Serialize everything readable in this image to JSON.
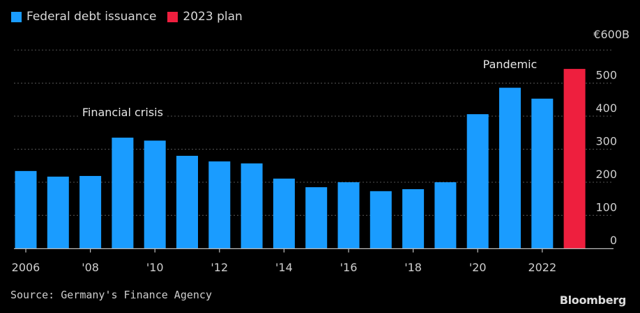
{
  "legend": [
    {
      "label": "Federal debt issuance",
      "color": "#1a9cff"
    },
    {
      "label": "2023 plan",
      "color": "#ee1f3e"
    }
  ],
  "unit_label": "€600B",
  "source": "Source: Germany's Finance Agency",
  "brand": "Bloomberg",
  "chart_data": {
    "type": "bar",
    "title": "",
    "xlabel": "",
    "ylabel": "€ billions",
    "ylim": [
      0,
      600
    ],
    "grid": true,
    "y_axis_side": "right",
    "legend_position": "top-left",
    "yticks": [
      0,
      100,
      200,
      300,
      400,
      500,
      600
    ],
    "ytick_labels": [
      "0",
      "100",
      "200",
      "300",
      "400",
      "500",
      "€600B"
    ],
    "categories": [
      "2006",
      "2007",
      "2008",
      "2009",
      "2010",
      "2011",
      "2012",
      "2013",
      "2014",
      "2015",
      "2016",
      "2017",
      "2018",
      "2019",
      "2020",
      "2021",
      "2022",
      "2023"
    ],
    "xtick_labels": [
      {
        "category": "2006",
        "label": "2006"
      },
      {
        "category": "2008",
        "label": "'08"
      },
      {
        "category": "2010",
        "label": "'10"
      },
      {
        "category": "2012",
        "label": "'12"
      },
      {
        "category": "2014",
        "label": "'14"
      },
      {
        "category": "2016",
        "label": "'16"
      },
      {
        "category": "2018",
        "label": "'18"
      },
      {
        "category": "2020",
        "label": "'20"
      },
      {
        "category": "2022",
        "label": "2022"
      }
    ],
    "series": [
      {
        "name": "Federal debt issuance",
        "color": "#1a9cff",
        "values": [
          234,
          217,
          219,
          335,
          326,
          280,
          263,
          257,
          211,
          185,
          200,
          173,
          179,
          200,
          406,
          486,
          453,
          null
        ]
      },
      {
        "name": "2023 plan",
        "color": "#ee1f3e",
        "values": [
          null,
          null,
          null,
          null,
          null,
          null,
          null,
          null,
          null,
          null,
          null,
          null,
          null,
          null,
          null,
          null,
          null,
          543
        ]
      }
    ],
    "annotations": [
      {
        "text": "Financial crisis",
        "category": "2009",
        "value": 400
      },
      {
        "text": "Pandemic",
        "category": "2021",
        "value": 545
      }
    ]
  }
}
